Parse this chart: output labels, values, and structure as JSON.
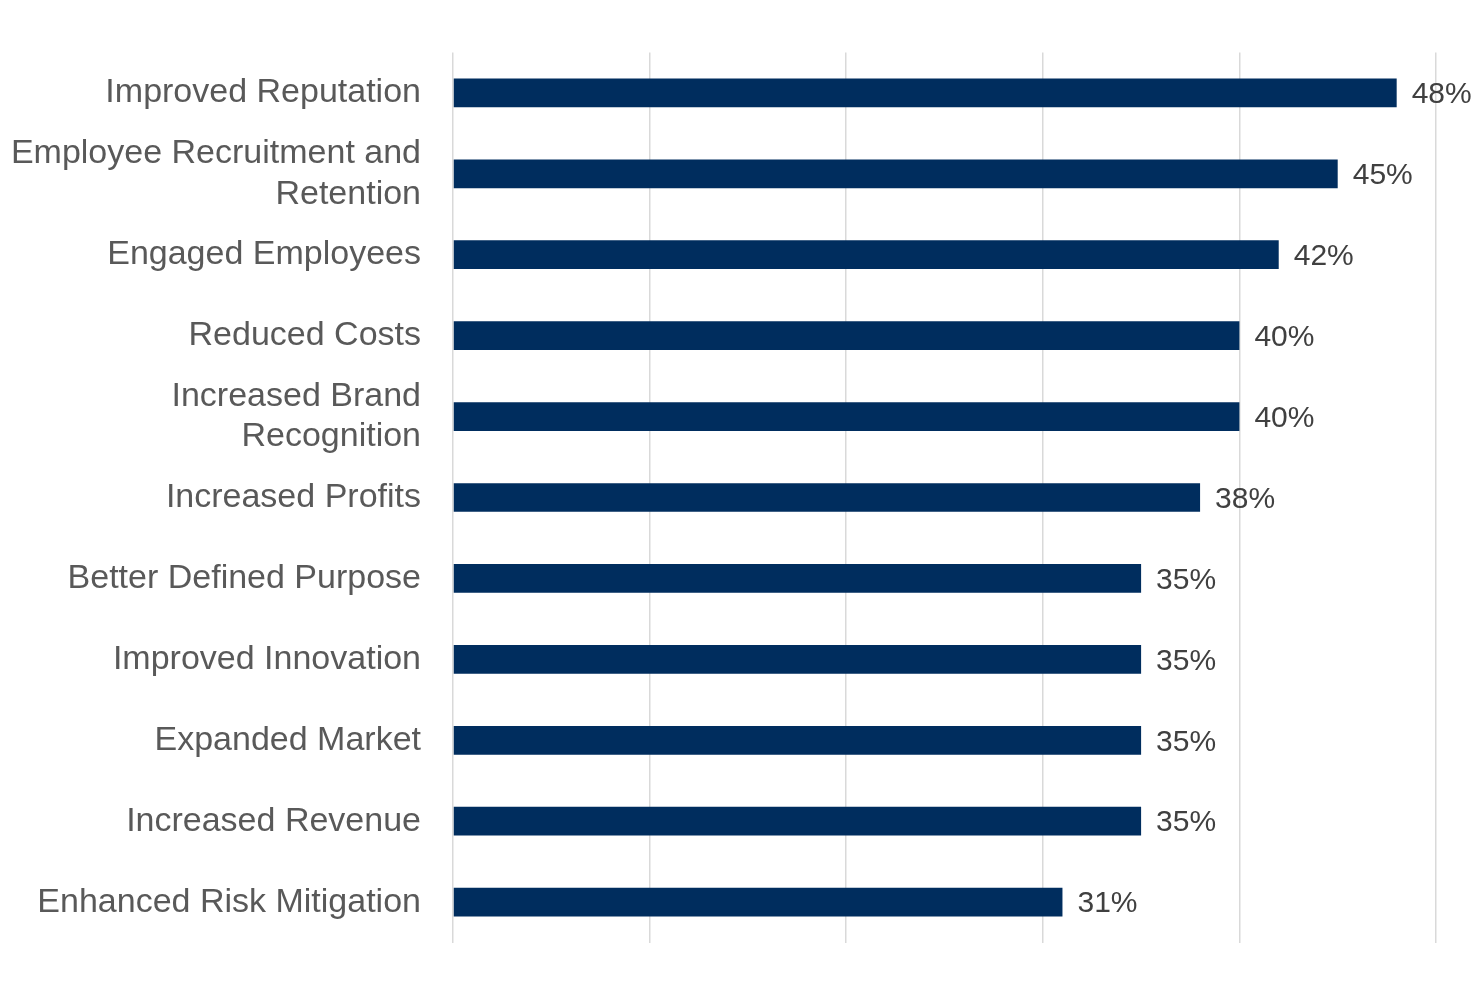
{
  "chart_data": {
    "type": "bar",
    "orientation": "horizontal",
    "categories": [
      "Improved Reputation",
      "Employee Recruitment and Retention",
      "Engaged Employees",
      "Reduced Costs",
      "Increased Brand Recognition",
      "Increased Profits",
      "Better Defined Purpose",
      "Improved Innovation",
      "Expanded Market",
      "Increased Revenue",
      "Enhanced Risk Mitigation"
    ],
    "values": [
      48,
      45,
      42,
      40,
      40,
      38,
      35,
      35,
      35,
      35,
      31
    ],
    "value_labels": [
      "48%",
      "45%",
      "42%",
      "40%",
      "40%",
      "38%",
      "35%",
      "35%",
      "35%",
      "35%",
      "31%"
    ],
    "color": "#002d5e",
    "xlim": [
      0,
      50
    ],
    "xticks": [
      {
        "value": 0,
        "label": null
      },
      {
        "value": 10,
        "label": null
      },
      {
        "value": 20,
        "label": null
      },
      {
        "value": 30,
        "label": null
      },
      {
        "value": 40,
        "label": null
      },
      {
        "value": 50,
        "label": null
      }
    ],
    "grid": "x",
    "tick_labels": "y",
    "legend": false
  }
}
